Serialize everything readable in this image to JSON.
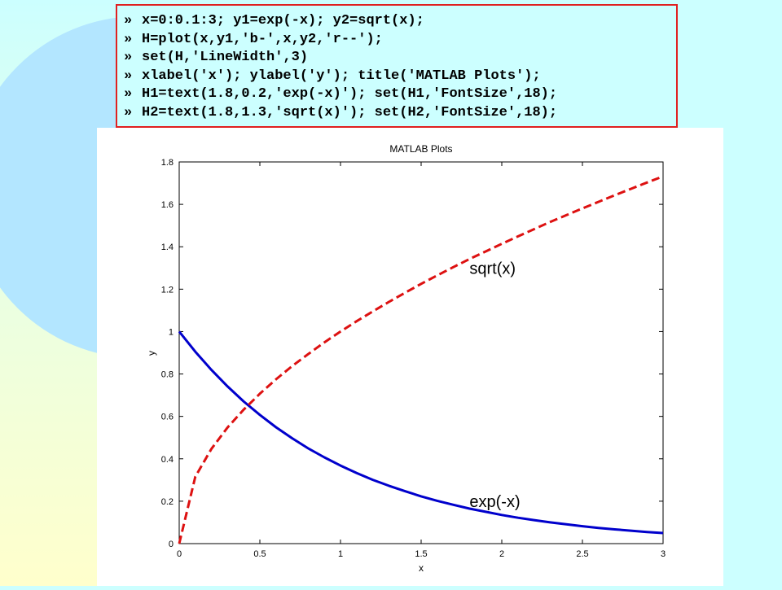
{
  "code": {
    "prompt": "»",
    "lines": [
      "x=0:0.1:3; y1=exp(-x); y2=sqrt(x);",
      "H=plot(x,y1,'b-',x,y2,'r--');",
      "set(H,'LineWidth',3)",
      "xlabel('x'); ylabel('y'); title('MATLAB Plots');",
      "H1=text(1.8,0.2,'exp(-x)'); set(H1,'FontSize',18);",
      "H2=text(1.8,1.3,'sqrt(x)'); set(H2,'FontSize',18);"
    ]
  },
  "chart_data": {
    "type": "line",
    "title": "MATLAB Plots",
    "xlabel": "x",
    "ylabel": "y",
    "xlim": [
      0,
      3
    ],
    "ylim": [
      0,
      1.8
    ],
    "xticks": [
      "0",
      "0.5",
      "1",
      "1.5",
      "2",
      "2.5",
      "3"
    ],
    "yticks": [
      "0",
      "0.2",
      "0.4",
      "0.6",
      "0.8",
      "1",
      "1.2",
      "1.4",
      "1.6",
      "1.8"
    ],
    "x": [
      0,
      0.1,
      0.2,
      0.3,
      0.4,
      0.5,
      0.6,
      0.7,
      0.8,
      0.9,
      1.0,
      1.1,
      1.2,
      1.3,
      1.4,
      1.5,
      1.6,
      1.7,
      1.8,
      1.9,
      2.0,
      2.1,
      2.2,
      2.3,
      2.4,
      2.5,
      2.6,
      2.7,
      2.8,
      2.9,
      3.0
    ],
    "series": [
      {
        "color": "#0000cc",
        "style": "solid",
        "values": [
          1.0,
          0.905,
          0.819,
          0.741,
          0.67,
          0.607,
          0.549,
          0.497,
          0.449,
          0.407,
          0.368,
          0.333,
          0.301,
          0.273,
          0.247,
          0.223,
          0.202,
          0.183,
          0.165,
          0.15,
          0.135,
          0.122,
          0.111,
          0.1,
          0.091,
          0.082,
          0.074,
          0.067,
          0.061,
          0.055,
          0.05
        ]
      },
      {
        "color": "#dd1111",
        "style": "dashed",
        "values": [
          0.0,
          0.316,
          0.447,
          0.548,
          0.632,
          0.707,
          0.775,
          0.837,
          0.894,
          0.949,
          1.0,
          1.049,
          1.095,
          1.14,
          1.183,
          1.225,
          1.265,
          1.304,
          1.342,
          1.378,
          1.414,
          1.449,
          1.483,
          1.517,
          1.549,
          1.581,
          1.612,
          1.643,
          1.673,
          1.703,
          1.732
        ]
      }
    ],
    "annotations": [
      {
        "text": "sqrt(x)",
        "x": 1.8,
        "y": 1.3
      },
      {
        "text": "exp(-x)",
        "x": 1.8,
        "y": 0.2
      }
    ]
  }
}
